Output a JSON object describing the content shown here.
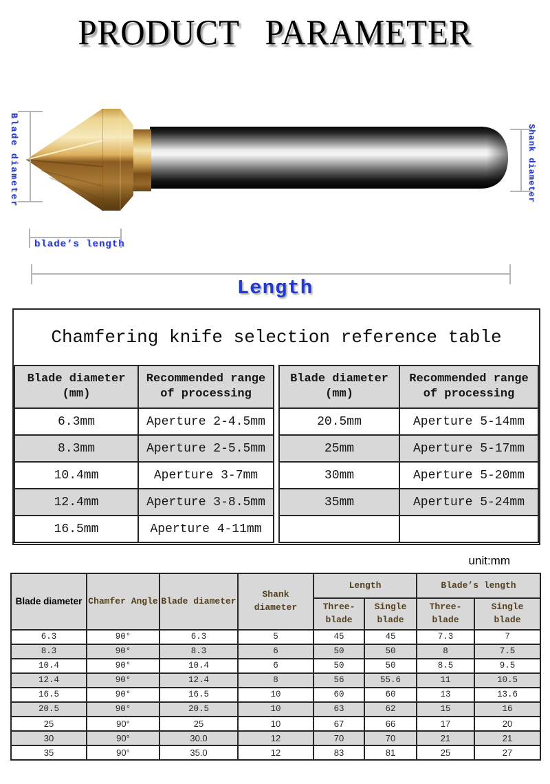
{
  "palette": {
    "annotation_blue": "#2238d4",
    "dimension_line_gray": "#b5b5b5",
    "zebra_gray": "#d8d8d8",
    "border_dark": "#262626",
    "spec_header_brown": "#54401f",
    "gold_light": "#f6e9bb",
    "gold_dark": "#6e4a18",
    "shank_dark": "#0a0a0a"
  },
  "header": {
    "title": "PRODUCT PARAMETER"
  },
  "diagram": {
    "blade_diameter_label": "Blade diameter",
    "shank_diameter_label": "Shank diameter",
    "blades_length_label": "blade’s length",
    "length_label": "Length"
  },
  "reference_table": {
    "title": "Chamfering knife selection reference table",
    "blade_col_header": "Blade diameter (mm)",
    "range_col_header": "Recommended range of processing",
    "left_rows": [
      [
        "6.3mm",
        "Aperture 2-4.5mm"
      ],
      [
        "8.3mm",
        "Aperture 2-5.5mm"
      ],
      [
        "10.4mm",
        "Aperture 3-7mm"
      ],
      [
        "12.4mm",
        "Aperture 3-8.5mm"
      ],
      [
        "16.5mm",
        "Aperture 4-11mm"
      ]
    ],
    "right_rows": [
      [
        "20.5mm",
        "Aperture 5-14mm"
      ],
      [
        "25mm",
        "Aperture 5-17mm"
      ],
      [
        "30mm",
        "Aperture 5-20mm"
      ],
      [
        "35mm",
        "Aperture 5-24mm"
      ],
      [
        "",
        ""
      ]
    ]
  },
  "spec_table": {
    "unit_note": "unit:mm",
    "columns": {
      "col1": "Blade diameter",
      "col2": "Chamfer Angle",
      "col3": "Blade diameter",
      "col4": "Shank diameter",
      "group_length": "Length",
      "group_blades_length": "Blade’s length",
      "sub1": "Three-blade",
      "sub2": "Single blade",
      "sub3": "Three-blade",
      "sub4": "Single blade"
    },
    "rows": [
      [
        "6.3",
        "90°",
        "6.3",
        "5",
        "45",
        "45",
        "7.3",
        "7"
      ],
      [
        "8.3",
        "90°",
        "8.3",
        "6",
        "50",
        "50",
        "8",
        "7.5"
      ],
      [
        "10.4",
        "90°",
        "10.4",
        "6",
        "50",
        "50",
        "8.5",
        "9.5"
      ],
      [
        "12.4",
        "90°",
        "12.4",
        "8",
        "56",
        "55.6",
        "11",
        "10.5"
      ],
      [
        "16.5",
        "90°",
        "16.5",
        "10",
        "60",
        "60",
        "13",
        "13.6"
      ],
      [
        "20.5",
        "90°",
        "20.5",
        "10",
        "63",
        "62",
        "15",
        "16"
      ],
      [
        "25",
        "90°",
        "25",
        "10",
        "67",
        "66",
        "17",
        "20"
      ],
      [
        "30",
        "90°",
        "30.0",
        "12",
        "70",
        "70",
        "21",
        "21"
      ],
      [
        "35",
        "90°",
        "35.0",
        "12",
        "83",
        "81",
        "25",
        "27"
      ]
    ]
  }
}
